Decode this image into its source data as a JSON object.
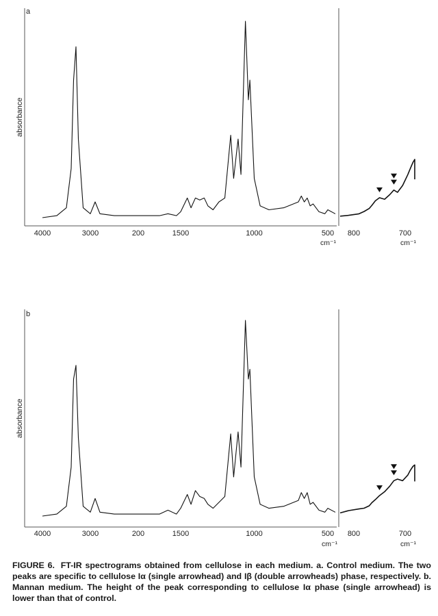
{
  "chart_data": [
    {
      "type": "line",
      "panel": "a",
      "ylabel": "absorbance",
      "xunit": "cm⁻¹",
      "main_ticks": [
        "4000",
        "3000",
        "200",
        "1500",
        "1000",
        "500"
      ],
      "inset_ticks": [
        "800",
        "700"
      ],
      "series": [
        {
          "x": [
            4000,
            3700,
            3500,
            3400,
            3350,
            3300,
            3250,
            3150,
            3000,
            2900,
            2800,
            2500,
            2000,
            1750,
            1650,
            1550,
            1500,
            1455,
            1430,
            1400,
            1370,
            1340,
            1315,
            1280,
            1240,
            1200,
            1160,
            1140,
            1110,
            1090,
            1060,
            1040,
            1030,
            1000,
            960,
            900,
            800,
            700,
            680,
            660,
            640,
            620,
            600,
            560,
            520,
            500,
            450,
            400
          ],
          "y": [
            0.0,
            0.01,
            0.05,
            0.25,
            0.7,
            0.87,
            0.4,
            0.05,
            0.02,
            0.08,
            0.02,
            0.01,
            0.01,
            0.01,
            0.02,
            0.01,
            0.03,
            0.1,
            0.05,
            0.1,
            0.09,
            0.1,
            0.06,
            0.04,
            0.08,
            0.1,
            0.42,
            0.2,
            0.4,
            0.22,
            1.0,
            0.6,
            0.7,
            0.2,
            0.06,
            0.04,
            0.05,
            0.08,
            0.11,
            0.08,
            0.1,
            0.06,
            0.07,
            0.03,
            0.02,
            0.04,
            0.02,
            0.02
          ]
        }
      ],
      "inset": {
        "x": [
          830,
          810,
          790,
          780,
          770,
          765,
          758,
          750,
          740,
          730,
          722,
          715,
          705,
          695,
          690,
          685,
          680,
          675,
          668,
          660
        ],
        "y": [
          0.02,
          0.03,
          0.05,
          0.08,
          0.12,
          0.16,
          0.22,
          0.26,
          0.24,
          0.3,
          0.36,
          0.33,
          0.42,
          0.56,
          0.64,
          0.72,
          0.76,
          0.7,
          0.55,
          0.5
        ],
        "single_arrowhead_x": 750,
        "double_arrowhead_x": 722
      }
    },
    {
      "type": "line",
      "panel": "b",
      "ylabel": "absorbance",
      "xunit": "cm⁻¹",
      "main_ticks": [
        "4000",
        "3000",
        "200",
        "1500",
        "1000",
        "500"
      ],
      "inset_ticks": [
        "800",
        "700"
      ],
      "series": [
        {
          "x": [
            4000,
            3700,
            3500,
            3400,
            3350,
            3300,
            3250,
            3150,
            3000,
            2900,
            2800,
            2500,
            2000,
            1750,
            1650,
            1550,
            1500,
            1455,
            1430,
            1400,
            1370,
            1340,
            1315,
            1280,
            1240,
            1200,
            1160,
            1140,
            1110,
            1090,
            1060,
            1040,
            1030,
            1000,
            960,
            900,
            800,
            700,
            680,
            660,
            640,
            620,
            600,
            560,
            520,
            500,
            450,
            400
          ],
          "y": [
            0.0,
            0.01,
            0.05,
            0.25,
            0.7,
            0.77,
            0.4,
            0.05,
            0.02,
            0.09,
            0.02,
            0.01,
            0.01,
            0.01,
            0.03,
            0.01,
            0.04,
            0.11,
            0.06,
            0.13,
            0.1,
            0.09,
            0.06,
            0.04,
            0.07,
            0.1,
            0.42,
            0.2,
            0.43,
            0.25,
            1.0,
            0.7,
            0.75,
            0.2,
            0.06,
            0.04,
            0.05,
            0.08,
            0.12,
            0.09,
            0.12,
            0.06,
            0.07,
            0.03,
            0.02,
            0.04,
            0.02,
            0.02
          ]
        }
      ],
      "inset": {
        "x": [
          830,
          810,
          790,
          780,
          770,
          765,
          758,
          750,
          740,
          730,
          722,
          715,
          705,
          695,
          690,
          685,
          680,
          675,
          668,
          660
        ],
        "y": [
          0.04,
          0.07,
          0.09,
          0.1,
          0.13,
          0.17,
          0.21,
          0.26,
          0.31,
          0.38,
          0.45,
          0.47,
          0.45,
          0.52,
          0.58,
          0.63,
          0.65,
          0.6,
          0.5,
          0.44
        ],
        "single_arrowhead_x": 750,
        "double_arrowhead_x": 722
      }
    }
  ],
  "caption": {
    "label": "FIGURE 6.",
    "text": "FT-IR spectrograms obtained from cellulose in each medium. a. Control medium. The two peaks are specific to cellulose Iα (single arrowhead) and Iβ (double arrowheads) phase, respectively. b. Mannan medium. The height of the peak corresponding to cellulose Iα phase (single arrowhead) is lower than that of control."
  }
}
